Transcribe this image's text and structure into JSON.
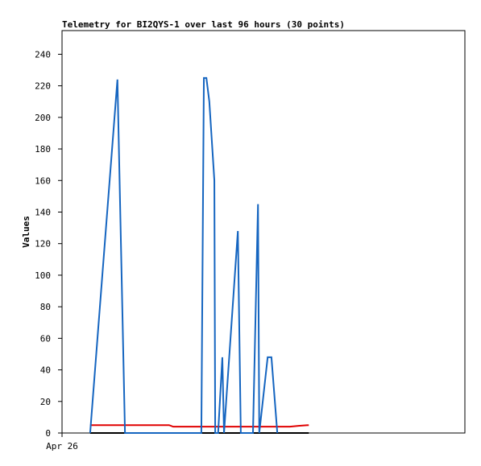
{
  "chart_data": {
    "type": "line",
    "title": "Telemetry for BI2QYS-1 over last 96 hours (30 points)",
    "y_label": "Values",
    "xlim": [
      0,
      96
    ],
    "xticks": [
      {
        "value": 0,
        "label": "Apr 26"
      }
    ],
    "ylim": [
      0,
      255
    ],
    "yticks": [
      0,
      20,
      40,
      60,
      80,
      100,
      120,
      140,
      160,
      180,
      200,
      220,
      240
    ],
    "series": [
      {
        "color": "#000000",
        "x": [
          6.7,
          58.8
        ],
        "values": [
          0,
          0
        ]
      },
      {
        "color": "#e00000",
        "x": [
          6.7,
          25.5,
          26.5,
          54.3,
          56.3,
          58.8
        ],
        "values": [
          5,
          5,
          4,
          4,
          4.5,
          5
        ]
      },
      {
        "color": "#1565c0",
        "x": [
          6.7,
          13.2,
          15.0,
          33.2,
          33.8,
          34.4,
          35.1,
          36.3,
          36.5,
          37.2,
          38.2,
          38.6,
          41.9,
          42.6,
          45.5,
          46.7,
          47.0,
          49.0,
          49.9,
          51.3
        ],
        "values": [
          0,
          224,
          0,
          0,
          225,
          225,
          210,
          160,
          0,
          0,
          48,
          0,
          128,
          0,
          0,
          145,
          0,
          48,
          48,
          0
        ]
      }
    ]
  }
}
